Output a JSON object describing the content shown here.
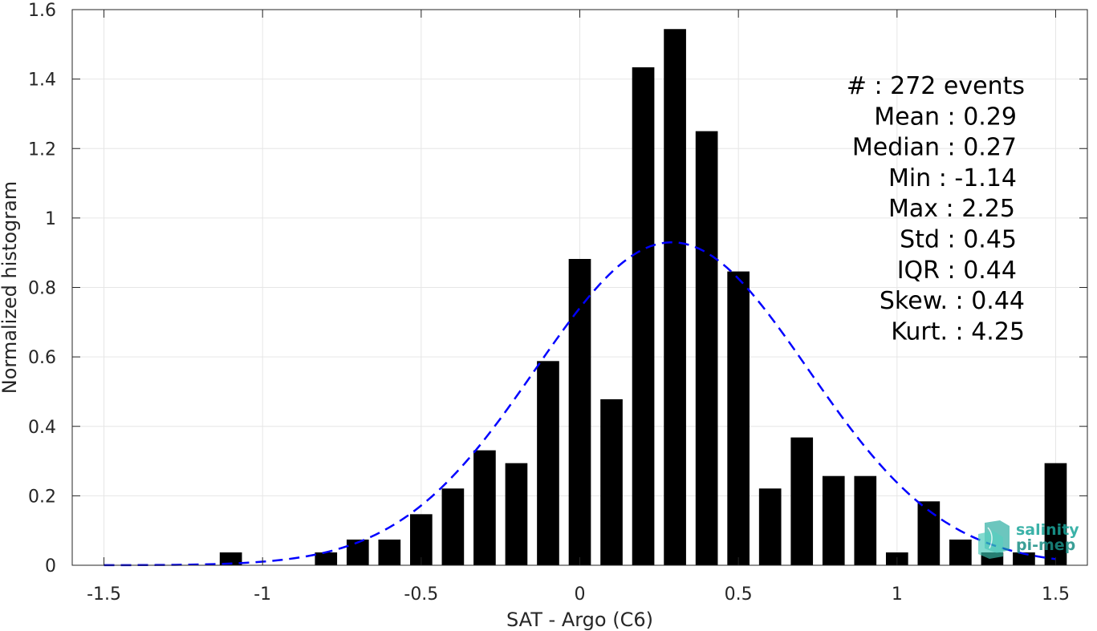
{
  "chart_data": {
    "type": "bar",
    "xlabel": "SAT - Argo (C6)",
    "ylabel": "Normalized histogram",
    "xlim": [
      -1.6,
      1.6
    ],
    "ylim": [
      0,
      1.6
    ],
    "x_ticks": [
      "-1.5",
      "-1",
      "-0.5",
      "0",
      "0.5",
      "1",
      "1.5"
    ],
    "x_tick_values": [
      -1.5,
      -1,
      -0.5,
      0,
      0.5,
      1,
      1.5
    ],
    "y_ticks": [
      "0",
      "0.2",
      "0.4",
      "0.6",
      "0.8",
      "1",
      "1.2",
      "1.4",
      "1.6"
    ],
    "y_tick_values": [
      0,
      0.2,
      0.4,
      0.6,
      0.8,
      1,
      1.2,
      1.4,
      1.6
    ],
    "grid": true,
    "bar_width": 0.07,
    "bars": [
      {
        "x": -1.1,
        "y": 0.037
      },
      {
        "x": -0.8,
        "y": 0.037
      },
      {
        "x": -0.7,
        "y": 0.074
      },
      {
        "x": -0.6,
        "y": 0.074
      },
      {
        "x": -0.5,
        "y": 0.147
      },
      {
        "x": -0.4,
        "y": 0.221
      },
      {
        "x": -0.3,
        "y": 0.331
      },
      {
        "x": -0.2,
        "y": 0.294
      },
      {
        "x": -0.1,
        "y": 0.588
      },
      {
        "x": 0.0,
        "y": 0.882
      },
      {
        "x": 0.1,
        "y": 0.478
      },
      {
        "x": 0.2,
        "y": 1.434
      },
      {
        "x": 0.3,
        "y": 1.544
      },
      {
        "x": 0.4,
        "y": 1.25
      },
      {
        "x": 0.5,
        "y": 0.846
      },
      {
        "x": 0.6,
        "y": 0.221
      },
      {
        "x": 0.7,
        "y": 0.368
      },
      {
        "x": 0.8,
        "y": 0.257
      },
      {
        "x": 0.9,
        "y": 0.257
      },
      {
        "x": 1.0,
        "y": 0.037
      },
      {
        "x": 1.1,
        "y": 0.184
      },
      {
        "x": 1.2,
        "y": 0.074
      },
      {
        "x": 1.3,
        "y": 0.037
      },
      {
        "x": 1.4,
        "y": 0.037
      },
      {
        "x": 1.5,
        "y": 0.294
      }
    ],
    "fit": {
      "type": "gaussian",
      "mean": 0.29,
      "std": 0.43,
      "peak": 0.93,
      "x_range": [
        -1.5,
        1.5
      ],
      "color": "#0000ff",
      "style": "dashed"
    },
    "bar_color": "#000000",
    "stats": [
      {
        "label": "#  : 272 events"
      },
      {
        "label": "Mean : 0.29"
      },
      {
        "label": "Median : 0.27"
      },
      {
        "label": "Min : -1.14"
      },
      {
        "label": "Max : 2.25"
      },
      {
        "label": "Std : 0.45"
      },
      {
        "label": "IQR : 0.44"
      },
      {
        "label": "Skew. : 0.44"
      },
      {
        "label": "Kurt. : 4.25"
      }
    ]
  },
  "logo": {
    "line1": "salinity",
    "line2": "pi-mep",
    "color": "#1aa59a"
  }
}
